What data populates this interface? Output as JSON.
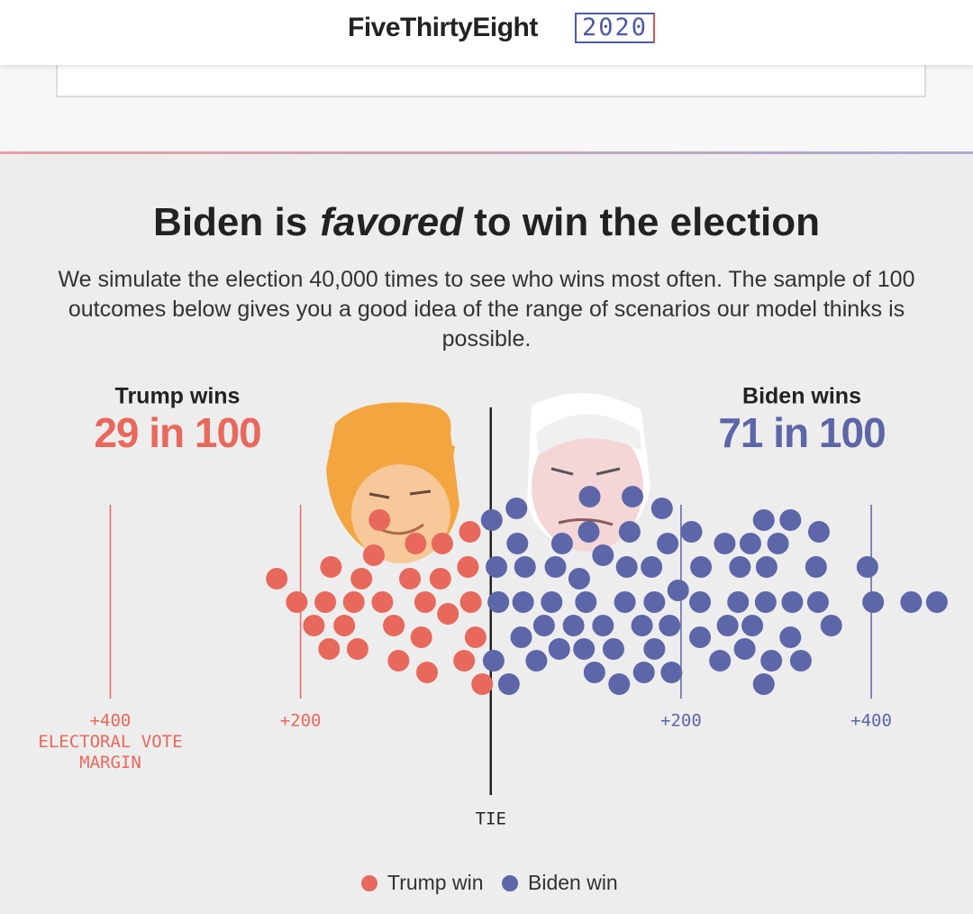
{
  "header": {
    "brand": "FiveThirtyEight",
    "year": "2020"
  },
  "chart_data": {
    "type": "beeswarm",
    "title_parts": [
      "Biden is",
      "favored",
      "to win the election"
    ],
    "subtitle": "We simulate the election 40,000 times to see who wins most often. The sample of 100 outcomes below gives you a good idea of the range of scenarios our model thinks is possible.",
    "summaries": [
      {
        "label": "Trump wins",
        "value": "29 in 100"
      },
      {
        "label": "Biden wins",
        "value": "71 in 100"
      }
    ],
    "xlabel": "ELECTORAL VOTE MARGIN",
    "xlim": [
      -516,
      507
    ],
    "xticks": [
      {
        "value": -400,
        "label": "+400"
      },
      {
        "value": -200,
        "label": "+200"
      },
      {
        "value": 0,
        "label": "TIE"
      },
      {
        "value": 200,
        "label": "+200"
      },
      {
        "value": 400,
        "label": "+400"
      }
    ],
    "series": [
      {
        "name": "Trump win",
        "color": "#e8685c",
        "values": [
          -21,
          -69,
          -174,
          -144,
          -114,
          -85,
          -53,
          -24,
          -204,
          -168,
          -136,
          -102,
          -73,
          -45,
          -16,
          -225,
          -186,
          -154,
          -123,
          -79,
          -51,
          -22,
          -170,
          -140,
          -97,
          -67,
          -28,
          -117,
          -9
        ]
      },
      {
        "name": "Biden win",
        "color": "#5d66a8",
        "values": [
          100,
          34,
          172,
          141,
          8,
          64,
          93,
          118,
          143,
          169,
          188,
          260,
          289,
          317,
          344,
          6,
          36,
          68,
          98,
          129,
          159,
          186,
          220,
          262,
          290,
          315,
          402,
          442,
          469,
          3,
          32,
          56,
          87,
          118,
          146,
          172,
          197,
          221,
          249,
          275,
          302,
          342,
          1,
          28,
          72,
          103,
          135,
          161,
          190,
          220,
          246,
          273,
          326,
          358,
          396,
          19,
          48,
          75,
          109,
          149,
          180,
          211,
          241,
          267,
          295,
          287,
          315,
          345,
          27,
          104,
          287
        ]
      }
    ]
  }
}
